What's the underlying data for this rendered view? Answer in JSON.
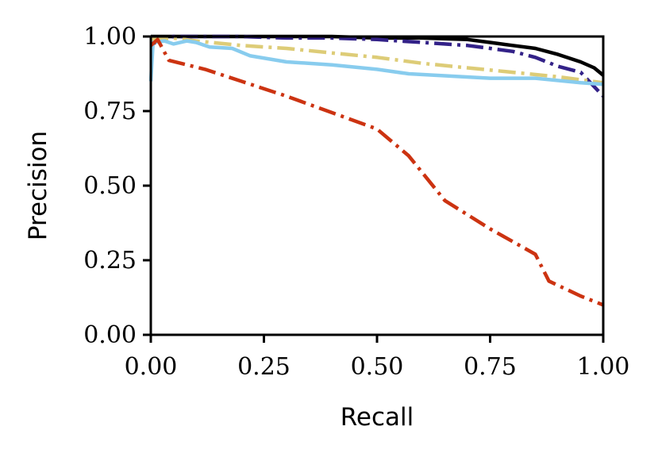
{
  "chart_data": {
    "type": "line",
    "title": "",
    "xlabel": "Recall",
    "ylabel": "Precision",
    "xlim": [
      0,
      1
    ],
    "ylim": [
      0,
      1
    ],
    "grid": false,
    "x_ticks": [
      "0.00",
      "0.25",
      "0.50",
      "0.75",
      "1.00"
    ],
    "y_ticks": [
      "0.00",
      "0.25",
      "0.50",
      "0.75",
      "1.00"
    ],
    "series": [
      {
        "color": "#000000",
        "style": "solid",
        "points": [
          [
            0.0,
            1.0
          ],
          [
            0.1,
            1.0
          ],
          [
            0.2,
            1.0
          ],
          [
            0.3,
            1.0
          ],
          [
            0.4,
            1.0
          ],
          [
            0.5,
            0.995
          ],
          [
            0.6,
            0.995
          ],
          [
            0.7,
            0.99
          ],
          [
            0.75,
            0.98
          ],
          [
            0.8,
            0.97
          ],
          [
            0.85,
            0.96
          ],
          [
            0.9,
            0.94
          ],
          [
            0.95,
            0.915
          ],
          [
            0.98,
            0.895
          ],
          [
            1.0,
            0.87
          ]
        ]
      },
      {
        "color": "#332288",
        "style": "dashdot",
        "points": [
          [
            0.0,
            0.97
          ],
          [
            0.02,
            0.99
          ],
          [
            0.05,
            1.0
          ],
          [
            0.2,
            1.0
          ],
          [
            0.3,
            0.995
          ],
          [
            0.4,
            0.995
          ],
          [
            0.5,
            0.99
          ],
          [
            0.6,
            0.98
          ],
          [
            0.7,
            0.97
          ],
          [
            0.75,
            0.96
          ],
          [
            0.8,
            0.95
          ],
          [
            0.85,
            0.93
          ],
          [
            0.9,
            0.9
          ],
          [
            0.95,
            0.88
          ],
          [
            1.0,
            0.8
          ]
        ]
      },
      {
        "color": "#ddcc77",
        "style": "dashdot",
        "points": [
          [
            0.0,
            0.99
          ],
          [
            0.05,
            0.995
          ],
          [
            0.1,
            0.985
          ],
          [
            0.2,
            0.97
          ],
          [
            0.3,
            0.96
          ],
          [
            0.4,
            0.945
          ],
          [
            0.5,
            0.93
          ],
          [
            0.6,
            0.91
          ],
          [
            0.7,
            0.895
          ],
          [
            0.8,
            0.88
          ],
          [
            0.9,
            0.865
          ],
          [
            1.0,
            0.845
          ]
        ]
      },
      {
        "color": "#88ccee",
        "style": "solid",
        "points": [
          [
            0.0,
            0.85
          ],
          [
            0.005,
            0.98
          ],
          [
            0.03,
            0.985
          ],
          [
            0.05,
            0.975
          ],
          [
            0.08,
            0.985
          ],
          [
            0.1,
            0.98
          ],
          [
            0.13,
            0.965
          ],
          [
            0.18,
            0.96
          ],
          [
            0.22,
            0.935
          ],
          [
            0.3,
            0.915
          ],
          [
            0.4,
            0.905
          ],
          [
            0.5,
            0.89
          ],
          [
            0.57,
            0.875
          ],
          [
            0.75,
            0.86
          ],
          [
            0.85,
            0.86
          ],
          [
            0.95,
            0.845
          ],
          [
            1.0,
            0.84
          ]
        ]
      },
      {
        "color": "#cc3311",
        "style": "dashdot",
        "points": [
          [
            0.0,
            0.97
          ],
          [
            0.015,
            0.99
          ],
          [
            0.04,
            0.92
          ],
          [
            0.12,
            0.89
          ],
          [
            0.2,
            0.85
          ],
          [
            0.3,
            0.8
          ],
          [
            0.4,
            0.745
          ],
          [
            0.5,
            0.69
          ],
          [
            0.57,
            0.6
          ],
          [
            0.65,
            0.45
          ],
          [
            0.75,
            0.355
          ],
          [
            0.85,
            0.27
          ],
          [
            0.88,
            0.18
          ],
          [
            0.95,
            0.13
          ],
          [
            1.0,
            0.1
          ]
        ]
      }
    ]
  }
}
